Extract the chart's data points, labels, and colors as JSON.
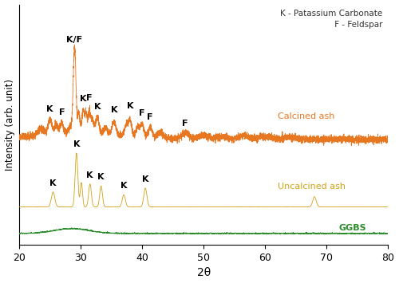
{
  "xlabel": "2θ",
  "ylabel": "Intensity (arb. unit)",
  "xlim": [
    20,
    80
  ],
  "xticks": [
    20,
    30,
    40,
    50,
    60,
    70,
    80
  ],
  "legend_text": "K - Patassium Carbonate\n F - Feldspar",
  "colors": {
    "calcined": "#E87722",
    "uncalcined": "#D4A017",
    "ggbs": "#2A8B2A"
  },
  "labels": {
    "calcined": "Calcined ash",
    "uncalcined": "Uncalcined ash",
    "ggbs": "GGBS"
  }
}
